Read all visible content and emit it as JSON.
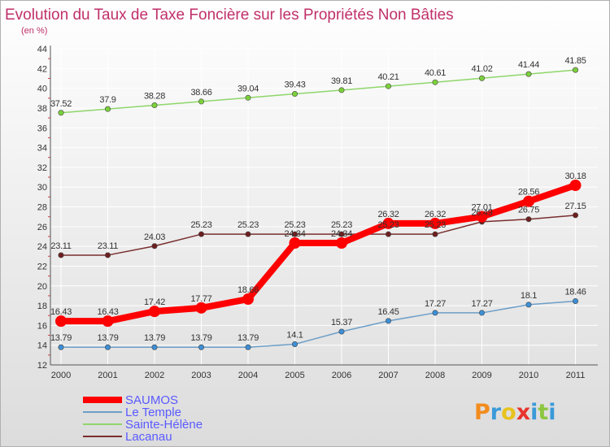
{
  "page": {
    "title": "Evolution du Taux de Taxe Foncière sur les Propriétés Non Bâties",
    "subtitle": "(en %)",
    "logo_text": "Proxiti"
  },
  "colors": {
    "title": "#c0306a",
    "background_gradient_top": "#ffffff",
    "background_gradient_bottom": "#dcdcdc",
    "grid": "#ffffff",
    "axis_text": "#333333",
    "legend_text": "#5a5aff",
    "logo": [
      "#f28c1e",
      "#3a9ad9",
      "#e8c21f",
      "#e8342e",
      "#3a9ad9",
      "#8dc63f",
      "#3a9ad9"
    ]
  },
  "chart_data": {
    "type": "line",
    "categories": [
      "2000",
      "2001",
      "2002",
      "2003",
      "2004",
      "2005",
      "2006",
      "2007",
      "2008",
      "2009",
      "2010",
      "2011"
    ],
    "ylim": [
      12,
      44
    ],
    "yticks": [
      12,
      14,
      16,
      18,
      20,
      22,
      24,
      26,
      28,
      30,
      32,
      34,
      36,
      38,
      40,
      42,
      44
    ],
    "grid": true,
    "legend_position": "bottom-left",
    "series": [
      {
        "name": "SAUMOS",
        "color": "#ff0000",
        "marker_fill": "#ff0000",
        "emphasis": "thick",
        "values": [
          16.43,
          16.43,
          17.42,
          17.77,
          18.66,
          24.34,
          24.34,
          26.32,
          26.32,
          27.01,
          28.56,
          30.18
        ],
        "labels": [
          "16.43",
          "16.43",
          "17.42",
          "17.77",
          "18.66",
          "24.34",
          "24.34",
          "26.32",
          "26.32",
          "27.01",
          "28.56",
          "30.18"
        ]
      },
      {
        "name": "Le Temple",
        "color": "#6c9ec8",
        "marker_fill": "#3d8fd6",
        "emphasis": "normal",
        "values": [
          13.79,
          13.79,
          13.79,
          13.79,
          13.79,
          14.1,
          15.37,
          16.45,
          17.27,
          17.27,
          18.1,
          18.46
        ],
        "labels": [
          "13.79",
          "13.79",
          "13.79",
          "13.79",
          "13.79",
          "14.1",
          "15.37",
          "16.45",
          "17.27",
          "17.27",
          "18.1",
          "18.46"
        ]
      },
      {
        "name": "Sainte-Hélène",
        "color": "#8fd66b",
        "marker_fill": "#7cd13b",
        "emphasis": "normal",
        "values": [
          37.52,
          37.9,
          38.28,
          38.66,
          39.04,
          39.43,
          39.81,
          40.21,
          40.61,
          41.02,
          41.44,
          41.85
        ],
        "labels": [
          "37.52",
          "37.9",
          "38.28",
          "38.66",
          "39.04",
          "39.43",
          "39.81",
          "40.21",
          "40.61",
          "41.02",
          "41.44",
          "41.85"
        ]
      },
      {
        "name": "Lacanau",
        "color": "#7a2e2e",
        "marker_fill": "#6e1f1f",
        "emphasis": "normal",
        "values": [
          23.11,
          23.11,
          24.03,
          25.23,
          25.23,
          25.23,
          25.23,
          25.23,
          25.23,
          26.49,
          26.75,
          27.15
        ],
        "labels": [
          "23.11",
          "23.11",
          "24.03",
          "25.23",
          "25.23",
          "25.23",
          "25.23",
          "25.23",
          "25.23",
          "26.49",
          "26.75",
          "27.15"
        ]
      }
    ]
  }
}
